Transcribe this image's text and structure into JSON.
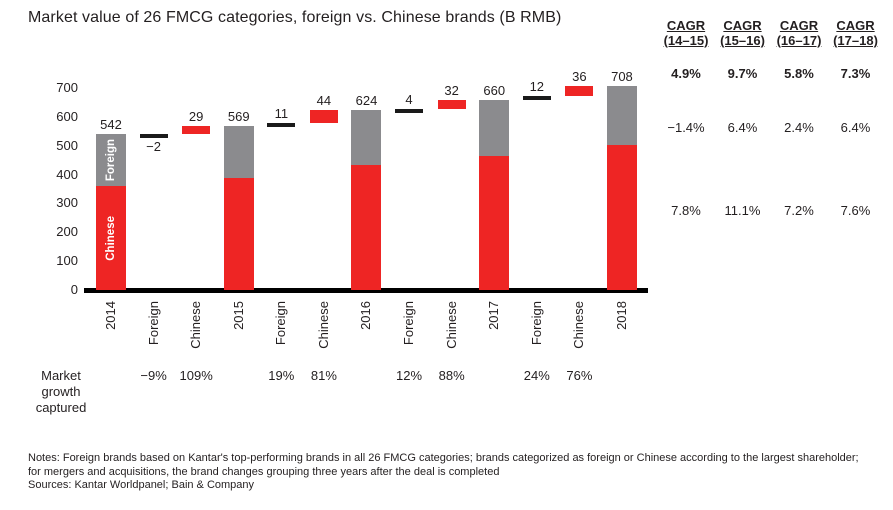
{
  "title": "Market value of 26 FMCG categories, foreign vs. Chinese brands (B RMB)",
  "market_growth": {
    "label": "Market growth captured"
  },
  "footer": {
    "notes": "Notes: Foreign brands based on Kantar's top-performing brands in all 26 FMCG categories; brands categorized as foreign or Chinese according to the largest shareholder; for mergers and acquisitions, the brand changes grouping three years after the deal is completed",
    "sources": "Sources: Kantar Worldpanel; Bain & Company"
  },
  "cagr_table": {
    "columns": [
      {
        "header_top": "CAGR",
        "header_bottom": "(14–15)",
        "total": "4.9%",
        "foreign": "−1.4%",
        "chinese": "7.8%"
      },
      {
        "header_top": "CAGR",
        "header_bottom": "(15–16)",
        "total": "9.7%",
        "foreign": "6.4%",
        "chinese": "11.1%"
      },
      {
        "header_top": "CAGR",
        "header_bottom": "(16–17)",
        "total": "5.8%",
        "foreign": "2.4%",
        "chinese": "7.2%"
      },
      {
        "header_top": "CAGR",
        "header_bottom": "(17–18)",
        "total": "7.3%",
        "foreign": "6.4%",
        "chinese": "7.6%"
      }
    ]
  },
  "chart_data": {
    "type": "bar",
    "subtype": "stacked-bar-with-waterfall-bridges",
    "title": "Market value of 26 FMCG categories, foreign vs. Chinese brands (B RMB)",
    "xlabel": "",
    "ylabel": "",
    "ylim": [
      0,
      700
    ],
    "yticks": [
      0,
      100,
      200,
      300,
      400,
      500,
      600,
      700
    ],
    "grid": false,
    "legend": {
      "chinese": "Chinese",
      "foreign": "Foreign"
    },
    "colors": {
      "chinese": "#ee2524",
      "foreign": "#8b8b8e",
      "axis": "#000000"
    },
    "columns": [
      {
        "label": "2014",
        "kind": "total",
        "total": 542,
        "chinese": 360,
        "foreign": 182,
        "bar_label": "542",
        "segment_labels": {
          "foreign": "Foreign",
          "chinese": "Chinese"
        }
      },
      {
        "label": "Foreign",
        "kind": "delta-foreign",
        "start": 542,
        "end": 540,
        "delta": -2,
        "bar_label": "−2",
        "growth_captured": "−9%"
      },
      {
        "label": "Chinese",
        "kind": "delta-chinese",
        "start": 540,
        "end": 569,
        "delta": 29,
        "bar_label": "29",
        "growth_captured": "109%"
      },
      {
        "label": "2015",
        "kind": "total",
        "total": 569,
        "chinese": 389,
        "foreign": 180,
        "bar_label": "569"
      },
      {
        "label": "Foreign",
        "kind": "delta-foreign",
        "start": 569,
        "end": 580,
        "delta": 11,
        "bar_label": "11",
        "growth_captured": "19%"
      },
      {
        "label": "Chinese",
        "kind": "delta-chinese",
        "start": 580,
        "end": 624,
        "delta": 44,
        "bar_label": "44",
        "growth_captured": "81%"
      },
      {
        "label": "2016",
        "kind": "total",
        "total": 624,
        "chinese": 433,
        "foreign": 191,
        "bar_label": "624"
      },
      {
        "label": "Foreign",
        "kind": "delta-foreign",
        "start": 624,
        "end": 628,
        "delta": 4,
        "bar_label": "4",
        "growth_captured": "12%"
      },
      {
        "label": "Chinese",
        "kind": "delta-chinese",
        "start": 628,
        "end": 660,
        "delta": 32,
        "bar_label": "32",
        "growth_captured": "88%"
      },
      {
        "label": "2017",
        "kind": "total",
        "total": 660,
        "chinese": 465,
        "foreign": 195,
        "bar_label": "660"
      },
      {
        "label": "Foreign",
        "kind": "delta-foreign",
        "start": 660,
        "end": 672,
        "delta": 12,
        "bar_label": "12",
        "growth_captured": "24%"
      },
      {
        "label": "Chinese",
        "kind": "delta-chinese",
        "start": 672,
        "end": 708,
        "delta": 36,
        "bar_label": "36",
        "growth_captured": "76%"
      },
      {
        "label": "2018",
        "kind": "total",
        "total": 708,
        "chinese": 501,
        "foreign": 207,
        "bar_label": "708"
      }
    ]
  }
}
